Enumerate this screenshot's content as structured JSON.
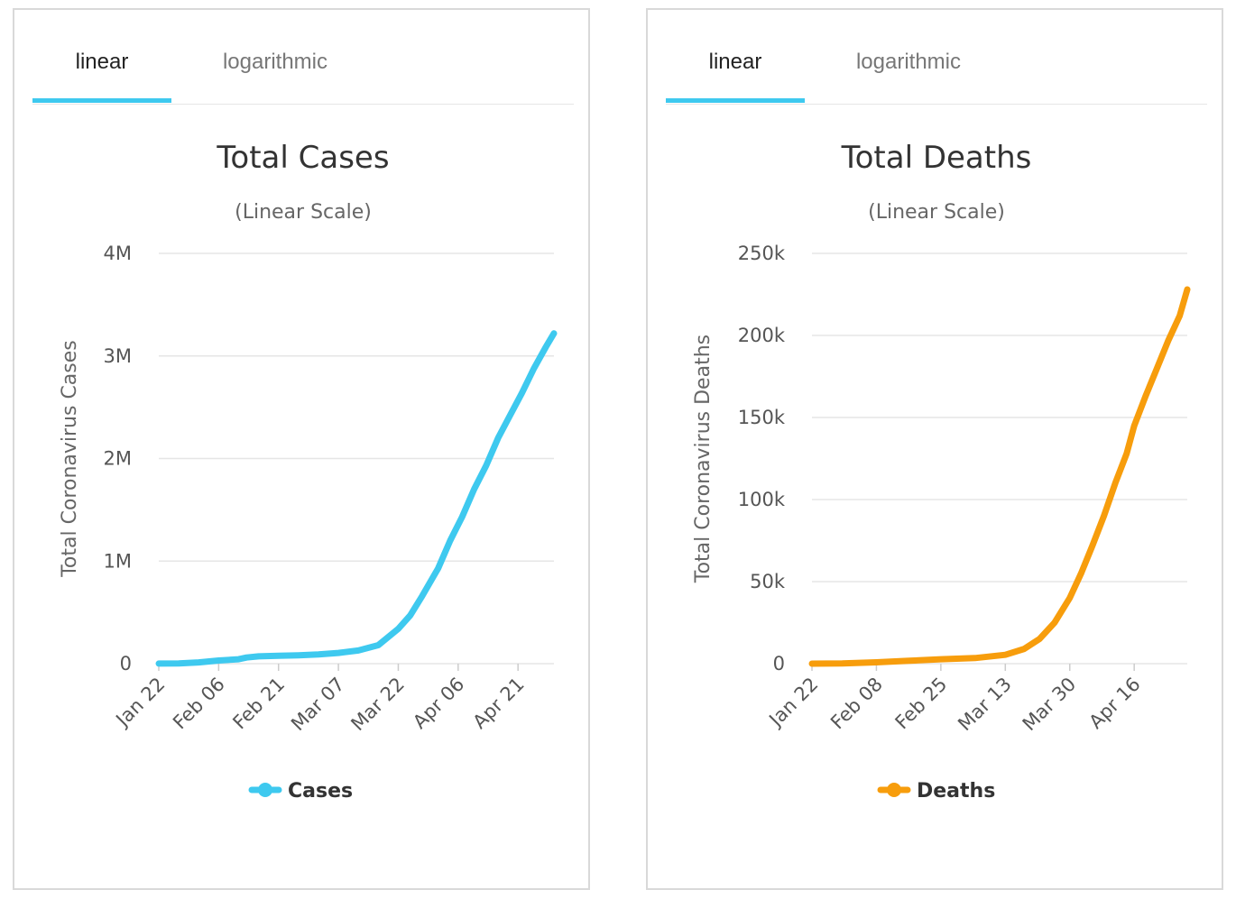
{
  "tabs": {
    "linear": "linear",
    "logarithmic": "logarithmic"
  },
  "chart_data": [
    {
      "type": "line",
      "title": "Total Cases",
      "subtitle": "(Linear Scale)",
      "xlabel": "",
      "ylabel": "Total Coronavirus Cases",
      "x_ticks": [
        "Jan 22",
        "Feb 06",
        "Feb 21",
        "Mar 07",
        "Mar 22",
        "Apr 06",
        "Apr 21"
      ],
      "y_ticks": [
        "0",
        "1M",
        "2M",
        "3M",
        "4M"
      ],
      "ylim": [
        0,
        4000000
      ],
      "grid": true,
      "legend": "bottom",
      "series": [
        {
          "name": "Cases",
          "color": "#3ec9ef",
          "x": [
            "Jan 22",
            "Jan 27",
            "Feb 01",
            "Feb 06",
            "Feb 11",
            "Feb 13",
            "Feb 16",
            "Feb 21",
            "Feb 26",
            "Mar 02",
            "Mar 07",
            "Mar 12",
            "Mar 17",
            "Mar 22",
            "Mar 25",
            "Mar 28",
            "Apr 01",
            "Apr 04",
            "Apr 07",
            "Apr 10",
            "Apr 13",
            "Apr 16",
            "Apr 19",
            "Apr 22",
            "Apr 25",
            "Apr 28",
            "Apr 30"
          ],
          "values": [
            555,
            2900,
            12000,
            31000,
            43000,
            60000,
            71000,
            77000,
            82000,
            90000,
            105000,
            128000,
            180000,
            340000,
            470000,
            660000,
            930000,
            1200000,
            1430000,
            1700000,
            1930000,
            2200000,
            2420000,
            2640000,
            2880000,
            3090000,
            3220000
          ]
        }
      ]
    },
    {
      "type": "line",
      "title": "Total Deaths",
      "subtitle": "(Linear Scale)",
      "xlabel": "",
      "ylabel": "Total Coronavirus Deaths",
      "x_ticks": [
        "Jan 22",
        "Feb 08",
        "Feb 25",
        "Mar 13",
        "Mar 30",
        "Apr 16"
      ],
      "y_ticks": [
        "0",
        "50k",
        "100k",
        "150k",
        "200k",
        "250k"
      ],
      "ylim": [
        0,
        250000
      ],
      "grid": true,
      "legend": "bottom",
      "series": [
        {
          "name": "Deaths",
          "color": "#f79d0c",
          "x": [
            "Jan 22",
            "Jan 30",
            "Feb 08",
            "Feb 16",
            "Feb 25",
            "Mar 05",
            "Mar 13",
            "Mar 18",
            "Mar 22",
            "Mar 26",
            "Mar 30",
            "Apr 02",
            "Apr 05",
            "Apr 08",
            "Apr 11",
            "Apr 14",
            "Apr 16",
            "Apr 19",
            "Apr 22",
            "Apr 25",
            "Apr 28",
            "Apr 30"
          ],
          "values": [
            17,
            170,
            800,
            1700,
            2700,
            3400,
            5400,
            9000,
            15000,
            25000,
            40000,
            55000,
            72000,
            90000,
            110000,
            128000,
            145000,
            163000,
            180000,
            197000,
            212000,
            228000
          ]
        }
      ]
    }
  ]
}
